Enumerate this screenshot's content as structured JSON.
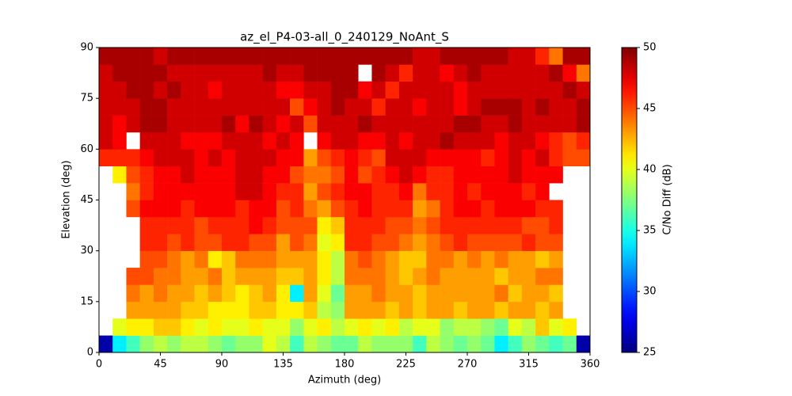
{
  "chart_data": {
    "type": "heatmap",
    "title": "az_el_P4-03-all_0_240129_NoAnt_S",
    "x_label": "Azimuth (deg)",
    "y_label": "Elevation (deg)",
    "colorbar_label": "C/No Diff (dB)",
    "colormap": "jet",
    "x_bins": [
      0,
      10,
      20,
      30,
      40,
      50,
      60,
      70,
      80,
      90,
      100,
      110,
      120,
      130,
      140,
      150,
      160,
      170,
      180,
      190,
      200,
      210,
      220,
      230,
      240,
      250,
      260,
      270,
      280,
      290,
      300,
      310,
      320,
      330,
      340,
      350,
      360
    ],
    "y_bins": [
      0,
      5,
      10,
      15,
      20,
      25,
      30,
      35,
      40,
      45,
      50,
      55,
      60,
      65,
      70,
      75,
      80,
      85,
      90
    ],
    "xlim": [
      0,
      360
    ],
    "ylim": [
      0,
      90
    ],
    "xticks": [
      0,
      45,
      90,
      135,
      180,
      225,
      270,
      315,
      360
    ],
    "yticks": [
      0,
      15,
      30,
      45,
      60,
      75,
      90
    ],
    "clim": [
      25,
      50
    ],
    "cticks": [
      25,
      30,
      35,
      40,
      45,
      50
    ],
    "values": [
      [
        26,
        34,
        36,
        38,
        39,
        38,
        39,
        39,
        38,
        37,
        38,
        38,
        40,
        39,
        36,
        39,
        38,
        37,
        37,
        39,
        38,
        38,
        38,
        36,
        39,
        38,
        37,
        38,
        37,
        34,
        36,
        38,
        37,
        36,
        37,
        26
      ],
      [
        null,
        40,
        41,
        41,
        42,
        42,
        41,
        40,
        41,
        40,
        40,
        41,
        40,
        40,
        38,
        40,
        41,
        39,
        40,
        41,
        40,
        41,
        39,
        40,
        40,
        38,
        39,
        39,
        38,
        37,
        40,
        39,
        42,
        40,
        41,
        null
      ],
      [
        null,
        null,
        43,
        43,
        43,
        43,
        42,
        42,
        41,
        41,
        41,
        42,
        42,
        41,
        41,
        42,
        39,
        38,
        43,
        43,
        43,
        42,
        43,
        42,
        43,
        43,
        42,
        43,
        43,
        42,
        43,
        43,
        42,
        43,
        null,
        null
      ],
      [
        null,
        null,
        44,
        43,
        44,
        43,
        43,
        42,
        43,
        42,
        41,
        42,
        43,
        41,
        34,
        43,
        40,
        37,
        43,
        43,
        44,
        43,
        43,
        42,
        43,
        43,
        43,
        43,
        43,
        44,
        42,
        43,
        43,
        42,
        null,
        null
      ],
      [
        null,
        null,
        45,
        45,
        44,
        44,
        43,
        43,
        44,
        42,
        43,
        43,
        43,
        42,
        42,
        43,
        41,
        39,
        44,
        44,
        44,
        43,
        42,
        43,
        44,
        43,
        43,
        43,
        43,
        42,
        43,
        43,
        44,
        44,
        null,
        null
      ],
      [
        null,
        null,
        null,
        45,
        45,
        44,
        43,
        44,
        41,
        42,
        44,
        44,
        44,
        43,
        43,
        43,
        41,
        39,
        44,
        45,
        44,
        43,
        42,
        42,
        44,
        44,
        43,
        44,
        43,
        44,
        43,
        43,
        42,
        43,
        null,
        null
      ],
      [
        null,
        null,
        null,
        46,
        46,
        45,
        46,
        45,
        45,
        46,
        46,
        45,
        45,
        43,
        45,
        44,
        40,
        41,
        46,
        46,
        45,
        45,
        44,
        43,
        44,
        45,
        46,
        45,
        45,
        45,
        45,
        46,
        45,
        45,
        null,
        null
      ],
      [
        null,
        null,
        null,
        46,
        46,
        46,
        46,
        45,
        46,
        46,
        46,
        47,
        46,
        45,
        45,
        45,
        41,
        42,
        46,
        46,
        46,
        45,
        45,
        44,
        45,
        46,
        46,
        46,
        46,
        46,
        46,
        45,
        45,
        46,
        null,
        null
      ],
      [
        null,
        null,
        45,
        47,
        47,
        47,
        46,
        47,
        47,
        47,
        46,
        47,
        47,
        45,
        46,
        44,
        43,
        45,
        46,
        47,
        46,
        46,
        46,
        43,
        44,
        46,
        47,
        47,
        46,
        47,
        47,
        47,
        46,
        46,
        null,
        null
      ],
      [
        null,
        null,
        44,
        46,
        47,
        47,
        47,
        47,
        47,
        47,
        48,
        48,
        47,
        46,
        46,
        43,
        45,
        46,
        47,
        47,
        46,
        46,
        47,
        44,
        46,
        46,
        47,
        46,
        47,
        47,
        47,
        46,
        47,
        null,
        null,
        null
      ],
      [
        null,
        41,
        45,
        46,
        47,
        47,
        48,
        47,
        47,
        47,
        48,
        48,
        47,
        47,
        45,
        44,
        44,
        45,
        47,
        45,
        46,
        47,
        48,
        47,
        46,
        46,
        47,
        47,
        47,
        47,
        48,
        47,
        47,
        47,
        null,
        null
      ],
      [
        46,
        46,
        46,
        47,
        48,
        48,
        48,
        47,
        48,
        47,
        48,
        48,
        48,
        47,
        47,
        43,
        45,
        46,
        47,
        46,
        45,
        48,
        48,
        48,
        47,
        47,
        47,
        47,
        46,
        47,
        48,
        47,
        48,
        46,
        45,
        45
      ],
      [
        48,
        47,
        null,
        48,
        48,
        48,
        47,
        47,
        47,
        48,
        48,
        48,
        47,
        48,
        47,
        null,
        47,
        48,
        48,
        47,
        47,
        48,
        47,
        48,
        48,
        49,
        48,
        48,
        48,
        47,
        48,
        48,
        47,
        46,
        45,
        46
      ],
      [
        48,
        47,
        48,
        49,
        49,
        48,
        48,
        48,
        48,
        49,
        47,
        49,
        48,
        47,
        48,
        45,
        48,
        48,
        48,
        49,
        48,
        48,
        48,
        48,
        48,
        48,
        49,
        49,
        48,
        48,
        49,
        48,
        48,
        48,
        48,
        49
      ],
      [
        48,
        48,
        48,
        49,
        49,
        48,
        48,
        48,
        48,
        48,
        48,
        48,
        48,
        48,
        45,
        47,
        48,
        49,
        48,
        48,
        46,
        48,
        48,
        47,
        48,
        48,
        47,
        48,
        49,
        49,
        49,
        48,
        49,
        48,
        48,
        49
      ],
      [
        48,
        48,
        49,
        49,
        48,
        49,
        48,
        48,
        47,
        48,
        48,
        48,
        48,
        47,
        47,
        48,
        48,
        49,
        49,
        47,
        48,
        46,
        48,
        48,
        48,
        48,
        47,
        48,
        48,
        48,
        48,
        48,
        48,
        48,
        49,
        48
      ],
      [
        48,
        49,
        49,
        49,
        49,
        48,
        48,
        48,
        48,
        48,
        48,
        48,
        49,
        48,
        48,
        49,
        49,
        49,
        49,
        null,
        49,
        48,
        46,
        48,
        48,
        47,
        48,
        49,
        48,
        48,
        48,
        48,
        48,
        49,
        47,
        44
      ],
      [
        49,
        49,
        49,
        49,
        48,
        49,
        49,
        49,
        49,
        49,
        49,
        49,
        49,
        49,
        49,
        49,
        49,
        49,
        49,
        49,
        49,
        49,
        49,
        48,
        48,
        49,
        49,
        49,
        49,
        49,
        48,
        48,
        46,
        44,
        49,
        49
      ]
    ]
  }
}
